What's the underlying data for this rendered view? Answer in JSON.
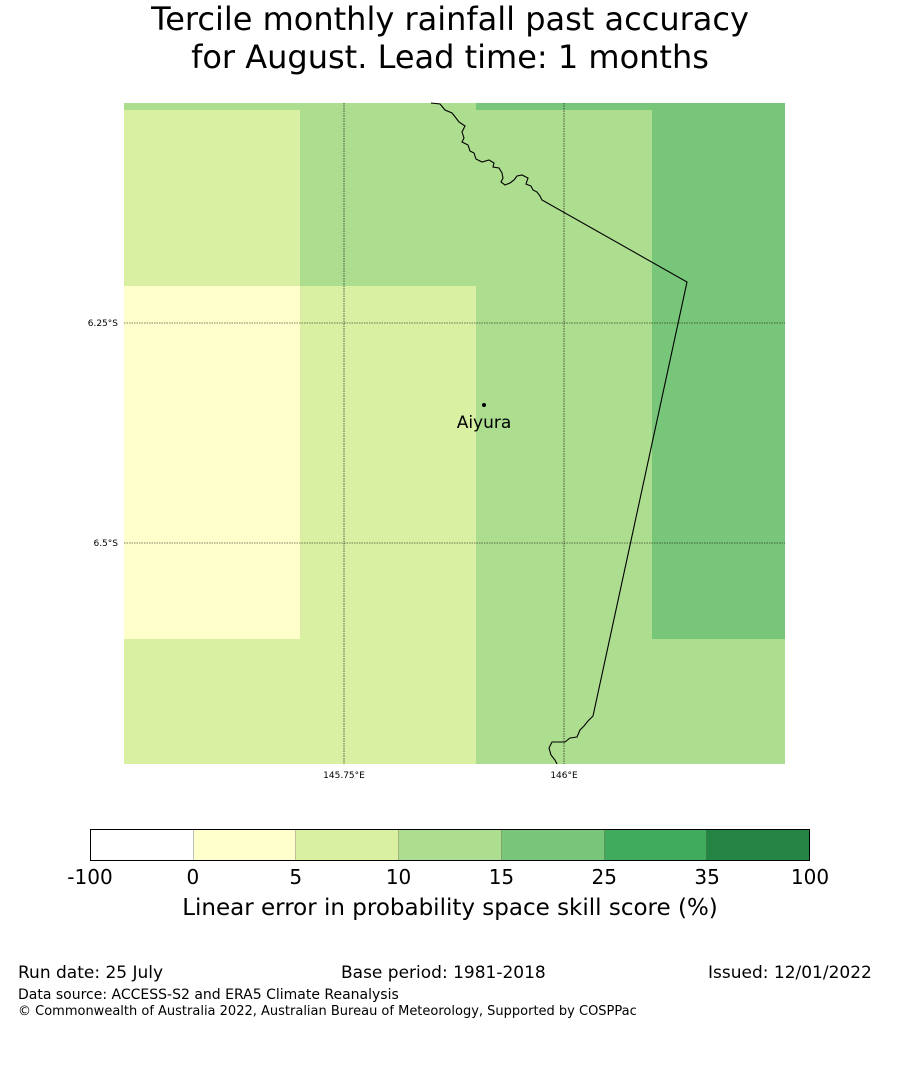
{
  "title": {
    "line1": "Tercile monthly rainfall past accuracy",
    "line2": "for August. Lead time: 1 months"
  },
  "map": {
    "lat_labels": [
      "6.25°S",
      "6.5°S"
    ],
    "lon_labels": [
      "145.75°E",
      "146°E"
    ],
    "place": {
      "name": "Aiyura"
    },
    "cells": [
      {
        "row": 0,
        "col": 0,
        "class": "5-10"
      },
      {
        "row": 0,
        "col": 1,
        "class": "10-15"
      },
      {
        "row": 0,
        "col": 2,
        "class": "10-15"
      },
      {
        "row": 0,
        "col": 3,
        "class": "15-25"
      },
      {
        "row": 1,
        "col": 0,
        "class": "0-5"
      },
      {
        "row": 1,
        "col": 1,
        "class": "5-10"
      },
      {
        "row": 1,
        "col": 2,
        "class": "10-15"
      },
      {
        "row": 1,
        "col": 3,
        "class": "15-25"
      },
      {
        "row": 2,
        "col": 0,
        "class": "5-10"
      },
      {
        "row": 2,
        "col": 1,
        "class": "5-10"
      },
      {
        "row": 2,
        "col": 2,
        "class": "10-15"
      },
      {
        "row": 2,
        "col": 3,
        "class": "10-15"
      }
    ]
  },
  "colorbar": {
    "ticks": [
      "-100",
      "0",
      "5",
      "10",
      "15",
      "25",
      "35",
      "100"
    ],
    "colors": [
      "#ffffff",
      "#ffffcc",
      "#d9f0a3",
      "#addd8e",
      "#78c679",
      "#41ab5d",
      "#238443"
    ],
    "title": "Linear error in probability space skill score (%)"
  },
  "footer": {
    "run_date": "Run date: 25 July",
    "base_period": "Base period: 1981-2018",
    "issued": "Issued: 12/01/2022",
    "data_source": "Data source: ACCESS-S2 and ERA5 Climate Reanalysis",
    "copyright": "© Commonwealth of Australia 2022, Australian Bureau of Meteorology, Supported by COSPPac"
  }
}
